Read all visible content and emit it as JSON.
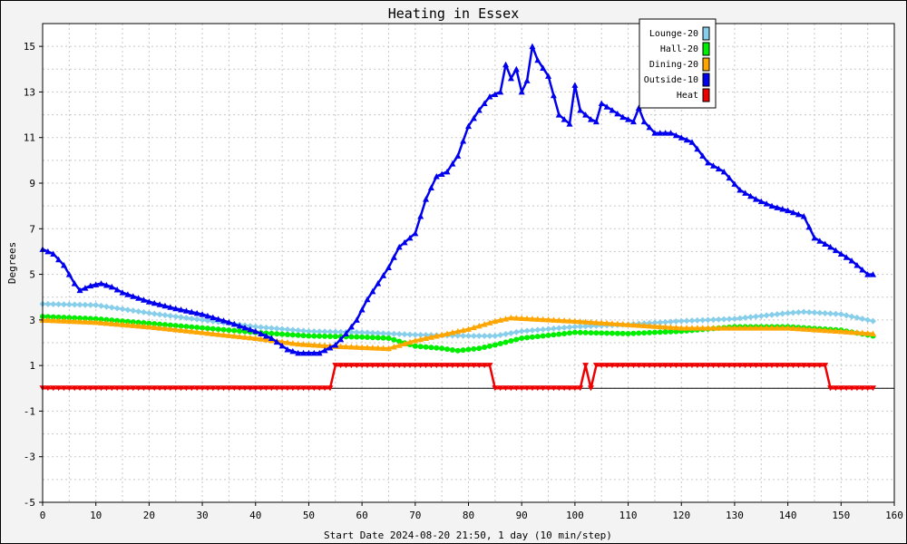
{
  "chart_data": {
    "type": "line",
    "title": "Heating in Essex",
    "xlabel": "Start Date 2024-08-20 21:50, 1 day (10 min/step)",
    "ylabel": "Degrees",
    "xlim": [
      0,
      160
    ],
    "ylim": [
      -5,
      16
    ],
    "x_ticks": [
      0,
      10,
      20,
      30,
      40,
      50,
      60,
      70,
      80,
      90,
      100,
      110,
      120,
      130,
      140,
      150,
      160
    ],
    "y_ticks": [
      -5,
      -3,
      -1,
      1,
      3,
      5,
      7,
      9,
      11,
      13,
      15
    ],
    "grid": true,
    "legend_position": "top-right",
    "zero_line": true,
    "series": [
      {
        "name": "Lounge-20",
        "color": "#87ceeb",
        "marker": "diamond",
        "points": [
          [
            0,
            3.7
          ],
          [
            10,
            3.65
          ],
          [
            20,
            3.3
          ],
          [
            30,
            3.0
          ],
          [
            40,
            2.7
          ],
          [
            50,
            2.5
          ],
          [
            60,
            2.45
          ],
          [
            70,
            2.35
          ],
          [
            80,
            2.3
          ],
          [
            85,
            2.3
          ],
          [
            90,
            2.5
          ],
          [
            100,
            2.7
          ],
          [
            110,
            2.8
          ],
          [
            120,
            2.95
          ],
          [
            130,
            3.05
          ],
          [
            140,
            3.3
          ],
          [
            143,
            3.35
          ],
          [
            150,
            3.25
          ],
          [
            156,
            2.95
          ]
        ]
      },
      {
        "name": "Hall-20",
        "color": "#00ee00",
        "marker": "circle",
        "points": [
          [
            0,
            3.15
          ],
          [
            10,
            3.05
          ],
          [
            20,
            2.85
          ],
          [
            30,
            2.65
          ],
          [
            40,
            2.45
          ],
          [
            50,
            2.3
          ],
          [
            60,
            2.25
          ],
          [
            65,
            2.2
          ],
          [
            70,
            1.85
          ],
          [
            75,
            1.75
          ],
          [
            78,
            1.65
          ],
          [
            82,
            1.75
          ],
          [
            85,
            1.9
          ],
          [
            90,
            2.2
          ],
          [
            100,
            2.45
          ],
          [
            110,
            2.4
          ],
          [
            120,
            2.5
          ],
          [
            130,
            2.7
          ],
          [
            140,
            2.7
          ],
          [
            150,
            2.55
          ],
          [
            156,
            2.3
          ]
        ]
      },
      {
        "name": "Dining-20",
        "color": "#ffa500",
        "marker": "triangle",
        "points": [
          [
            0,
            3.0
          ],
          [
            10,
            2.9
          ],
          [
            20,
            2.7
          ],
          [
            30,
            2.45
          ],
          [
            40,
            2.2
          ],
          [
            48,
            1.95
          ],
          [
            55,
            1.85
          ],
          [
            60,
            1.8
          ],
          [
            65,
            1.75
          ],
          [
            70,
            2.1
          ],
          [
            75,
            2.35
          ],
          [
            80,
            2.6
          ],
          [
            85,
            2.95
          ],
          [
            88,
            3.1
          ],
          [
            92,
            3.05
          ],
          [
            100,
            2.95
          ],
          [
            110,
            2.8
          ],
          [
            120,
            2.65
          ],
          [
            130,
            2.65
          ],
          [
            140,
            2.65
          ],
          [
            150,
            2.5
          ],
          [
            156,
            2.4
          ]
        ]
      },
      {
        "name": "Outside-10",
        "color": "#0000ee",
        "marker": "triangle",
        "points": [
          [
            0,
            6.1
          ],
          [
            2,
            5.9
          ],
          [
            4,
            5.4
          ],
          [
            6,
            4.6
          ],
          [
            7,
            4.3
          ],
          [
            9,
            4.5
          ],
          [
            11,
            4.6
          ],
          [
            13,
            4.45
          ],
          [
            15,
            4.2
          ],
          [
            20,
            3.8
          ],
          [
            25,
            3.5
          ],
          [
            30,
            3.25
          ],
          [
            35,
            2.9
          ],
          [
            40,
            2.5
          ],
          [
            43,
            2.2
          ],
          [
            46,
            1.7
          ],
          [
            48,
            1.55
          ],
          [
            52,
            1.55
          ],
          [
            55,
            1.9
          ],
          [
            57,
            2.4
          ],
          [
            59,
            3.0
          ],
          [
            61,
            3.9
          ],
          [
            63,
            4.6
          ],
          [
            65,
            5.3
          ],
          [
            67,
            6.2
          ],
          [
            70,
            6.8
          ],
          [
            72,
            8.3
          ],
          [
            74,
            9.3
          ],
          [
            76,
            9.5
          ],
          [
            78,
            10.2
          ],
          [
            80,
            11.5
          ],
          [
            82,
            12.2
          ],
          [
            84,
            12.8
          ],
          [
            86,
            13.0
          ],
          [
            87,
            14.2
          ],
          [
            88,
            13.6
          ],
          [
            89,
            14.0
          ],
          [
            90,
            13.0
          ],
          [
            91,
            13.5
          ],
          [
            92,
            15.0
          ],
          [
            93,
            14.4
          ],
          [
            95,
            13.7
          ],
          [
            97,
            12.0
          ],
          [
            99,
            11.6
          ],
          [
            100,
            13.3
          ],
          [
            101,
            12.2
          ],
          [
            103,
            11.8
          ],
          [
            104,
            11.7
          ],
          [
            105,
            12.5
          ],
          [
            107,
            12.2
          ],
          [
            109,
            11.9
          ],
          [
            111,
            11.7
          ],
          [
            112,
            12.3
          ],
          [
            113,
            11.7
          ],
          [
            115,
            11.2
          ],
          [
            118,
            11.2
          ],
          [
            122,
            10.8
          ],
          [
            125,
            9.9
          ],
          [
            128,
            9.5
          ],
          [
            131,
            8.7
          ],
          [
            134,
            8.3
          ],
          [
            137,
            8.0
          ],
          [
            140,
            7.8
          ],
          [
            143,
            7.55
          ],
          [
            145,
            6.6
          ],
          [
            148,
            6.2
          ],
          [
            150,
            5.9
          ],
          [
            152,
            5.6
          ],
          [
            155,
            5.0
          ],
          [
            156,
            5.0
          ]
        ]
      },
      {
        "name": "Heat",
        "color": "#ee0000",
        "marker": "triangle-down",
        "points": [
          [
            0,
            0
          ],
          [
            54,
            0
          ],
          [
            55,
            1
          ],
          [
            84,
            1
          ],
          [
            85,
            0
          ],
          [
            101,
            0
          ],
          [
            102,
            1
          ],
          [
            103,
            0
          ],
          [
            104,
            1
          ],
          [
            147,
            1
          ],
          [
            148,
            0
          ],
          [
            156,
            0
          ]
        ]
      }
    ]
  }
}
